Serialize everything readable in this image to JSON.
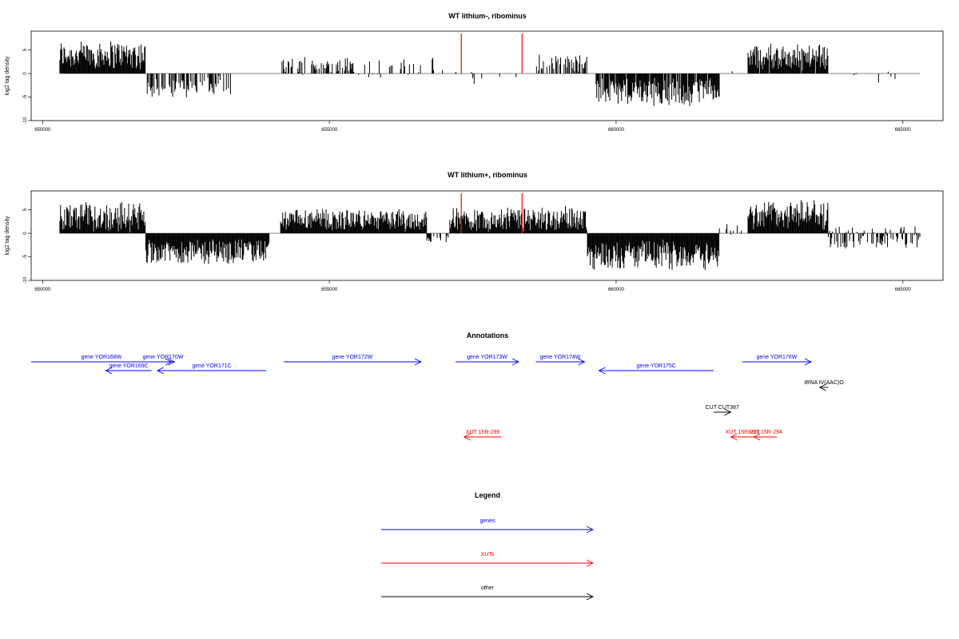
{
  "panels": [
    {
      "title": "WT lithium-, ribominus",
      "ylabel": "log2 tag density",
      "chart_data": {
        "type": "bar",
        "title": "WT lithium-, ribominus",
        "ylabel": "log2 tag density",
        "xlim": [
          649800,
          665700
        ],
        "ylim": [
          -10,
          9
        ],
        "xticks": [
          650000,
          655000,
          660000,
          665000
        ],
        "yticks": [
          -10,
          -5,
          0,
          5
        ],
        "grid": false,
        "baseline": {
          "from": 650300,
          "to": 665300,
          "y": 0
        },
        "segments": [
          {
            "from": 650300,
            "to": 651800,
            "base": 4.0,
            "amp": 3.5,
            "density": 1.0
          },
          {
            "from": 651800,
            "to": 653300,
            "base": -2.8,
            "amp": 2.4,
            "density": 0.55
          },
          {
            "from": 654150,
            "to": 655400,
            "base": 1.8,
            "amp": 2.2,
            "density": 0.45
          },
          {
            "from": 655400,
            "to": 657000,
            "base": 1.4,
            "amp": 2.6,
            "density": 0.22
          },
          {
            "from": 657200,
            "to": 658400,
            "base": -1.0,
            "amp": 2.0,
            "density": 0.08
          },
          {
            "from": 658600,
            "to": 659500,
            "base": 2.2,
            "amp": 2.0,
            "density": 0.5
          },
          {
            "from": 659650,
            "to": 661800,
            "base": -3.8,
            "amp": 3.2,
            "density": 0.9
          },
          {
            "from": 662000,
            "to": 662300,
            "base": 1.0,
            "amp": 1.5,
            "density": 0.2
          },
          {
            "from": 662300,
            "to": 663700,
            "base": 3.5,
            "amp": 3.0,
            "density": 0.95
          },
          {
            "from": 663700,
            "to": 665300,
            "base": -1.5,
            "amp": 3.0,
            "density": 0.06
          }
        ],
        "highlights": [
          {
            "x": 657300,
            "y": 8.5
          },
          {
            "x": 658360,
            "y": 8.5
          }
        ]
      }
    },
    {
      "title": "WT lithium+, ribominus",
      "ylabel": "log2 tag density",
      "chart_data": {
        "type": "bar",
        "title": "WT lithium+, ribominus",
        "ylabel": "log2 tag density",
        "xlim": [
          649800,
          665700
        ],
        "ylim": [
          -10,
          9
        ],
        "xticks": [
          650000,
          655000,
          660000,
          665000
        ],
        "yticks": [
          -10,
          -5,
          0,
          5
        ],
        "grid": false,
        "baseline": {
          "from": 650300,
          "to": 665300,
          "y": 0
        },
        "segments": [
          {
            "from": 650300,
            "to": 651800,
            "base": 3.5,
            "amp": 3.5,
            "density": 1.0
          },
          {
            "from": 651800,
            "to": 653950,
            "base": -3.8,
            "amp": 3.0,
            "density": 1.0
          },
          {
            "from": 654150,
            "to": 656700,
            "base": 2.8,
            "amp": 2.5,
            "density": 1.0
          },
          {
            "from": 656700,
            "to": 657100,
            "base": -1.2,
            "amp": 1.0,
            "density": 0.3
          },
          {
            "from": 657100,
            "to": 659500,
            "base": 3.0,
            "amp": 3.0,
            "density": 1.0
          },
          {
            "from": 659500,
            "to": 661800,
            "base": -4.5,
            "amp": 3.5,
            "density": 1.0
          },
          {
            "from": 661800,
            "to": 662300,
            "base": 1.0,
            "amp": 1.5,
            "density": 0.3
          },
          {
            "from": 662300,
            "to": 663700,
            "base": 4.0,
            "amp": 3.5,
            "density": 1.0
          },
          {
            "from": 663700,
            "to": 665300,
            "base": -1.0,
            "amp": 2.8,
            "density": 0.55
          }
        ],
        "highlights": [
          {
            "x": 657300,
            "y": 8.5
          },
          {
            "x": 658360,
            "y": 8.5
          }
        ]
      }
    }
  ],
  "annotations": {
    "title": "Annotations",
    "features": [
      {
        "label": "gene YOR168W",
        "start": 649800,
        "end": 652250,
        "strand": "+",
        "row": 0,
        "type": "gene"
      },
      {
        "label": "gene YOR169C",
        "start": 651100,
        "end": 651900,
        "strand": "-",
        "row": 1,
        "type": "gene"
      },
      {
        "label": "gene YOR170W",
        "start": 651900,
        "end": 652300,
        "strand": "+",
        "row": 0,
        "type": "gene"
      },
      {
        "label": "gene YOR171C",
        "start": 652000,
        "end": 653900,
        "strand": "-",
        "row": 1,
        "type": "gene"
      },
      {
        "label": "gene YOR172W",
        "start": 654200,
        "end": 656600,
        "strand": "+",
        "row": 0,
        "type": "gene"
      },
      {
        "label": "gene YOR173W",
        "start": 657200,
        "end": 658300,
        "strand": "+",
        "row": 0,
        "type": "gene"
      },
      {
        "label": "gene YOR174W",
        "start": 658600,
        "end": 659450,
        "strand": "+",
        "row": 0,
        "type": "gene"
      },
      {
        "label": "gene YOR175C",
        "start": 659700,
        "end": 661700,
        "strand": "-",
        "row": 1,
        "type": "gene"
      },
      {
        "label": "gene YOR176W",
        "start": 662200,
        "end": 663400,
        "strand": "+",
        "row": 0,
        "type": "gene"
      },
      {
        "label": "tRNA tV(AAC)O",
        "start": 663550,
        "end": 663700,
        "strand": "-",
        "row": 2,
        "type": "other"
      },
      {
        "label": "CUT CUT387",
        "start": 661700,
        "end": 662000,
        "strand": "+",
        "row": 3,
        "type": "other"
      },
      {
        "label": "XUT 15R-289",
        "start": 657350,
        "end": 658000,
        "strand": "-",
        "row": 4,
        "type": "xut"
      },
      {
        "label": "XUT 15R-293",
        "start": 662000,
        "end": 662400,
        "strand": "-",
        "row": 4,
        "type": "xut"
      },
      {
        "label": "XUT 15R-294",
        "start": 662400,
        "end": 662800,
        "strand": "-",
        "row": 4,
        "type": "xut"
      }
    ]
  },
  "legend": {
    "title": "Legend",
    "items": [
      {
        "label": "genes",
        "color": "#0000ff"
      },
      {
        "label": "XUTs",
        "color": "#ff0000"
      },
      {
        "label": "other",
        "color": "#000000"
      }
    ]
  },
  "colors": {
    "gene": "#0000ff",
    "xut": "#ff0000",
    "other": "#000000",
    "highlight": "#ff0000",
    "bar": "#000000"
  }
}
